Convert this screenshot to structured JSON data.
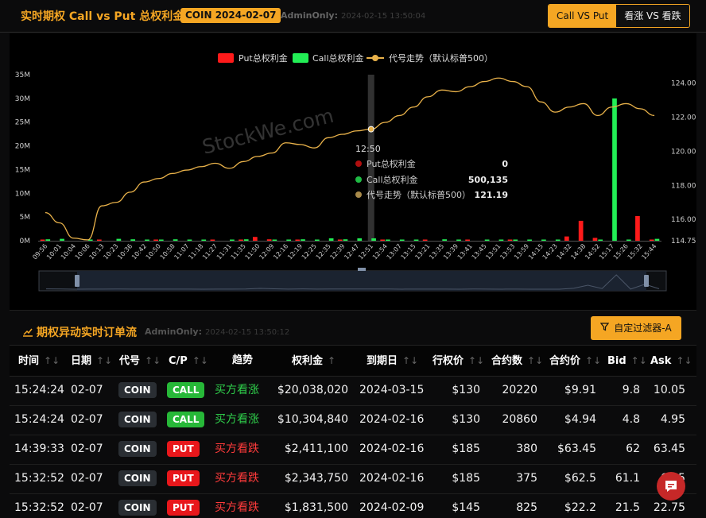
{
  "header": {
    "title": "实时期权 Call vs Put 总权利金",
    "badge": "COIN 2024-02-07",
    "admin_label": "AdminOnly:",
    "admin_timestamp": "2024-02-15 13:50:04",
    "tabs": [
      "Call VS Put",
      "看涨 VS 看跌"
    ]
  },
  "chart": {
    "legend": [
      "Put总权利金",
      "Call总权利金",
      "代号走势（默认标普500）"
    ],
    "watermark": "StockWe.com",
    "left_axis": [
      "35M",
      "30M",
      "25M",
      "20M",
      "15M",
      "10M",
      "5M",
      "0M"
    ],
    "right_axis": [
      "124.00",
      "122.00",
      "120.00",
      "118.00",
      "116.00",
      "114.75"
    ],
    "x_ticks": [
      "09:56",
      "10:01",
      "10:04",
      "10:06",
      "10:13",
      "10:23",
      "10:36",
      "10:42",
      "10:50",
      "10:58",
      "11:07",
      "11:18",
      "11:27",
      "11:31",
      "11:35",
      "11:50",
      "12:09",
      "12:16",
      "12:19",
      "12:25",
      "12:35",
      "12:39",
      "12:47",
      "12:51",
      "12:54",
      "13:07",
      "13:15",
      "13:21",
      "13:35",
      "13:39",
      "13:41",
      "13:45",
      "13:51",
      "13:53",
      "13:59",
      "14:15",
      "14:23",
      "14:32",
      "14:38",
      "14:52",
      "15:17",
      "15:26",
      "15:32",
      "15:44"
    ],
    "tooltip": {
      "time": "12:50",
      "rows": [
        {
          "label": "Put总权利金",
          "value": "0"
        },
        {
          "label": "Call总权利金",
          "value": "500,135"
        },
        {
          "label": "代号走势（默认标普500）",
          "value": "121.19"
        }
      ]
    },
    "colors": {
      "put": "#ff1a1a",
      "call": "#22ee55",
      "line": "#e9b24a",
      "accent": "#f5a623"
    }
  },
  "chart_data": {
    "type": "bar",
    "legend": [
      "Put总权利金",
      "Call总权利金",
      "代号走势（默认标普500）"
    ],
    "y_left_range": [
      0,
      35000000
    ],
    "y_right_range": [
      114.75,
      124.5
    ],
    "x": [
      "09:56",
      "10:01",
      "10:04",
      "10:06",
      "10:13",
      "10:23",
      "10:36",
      "10:42",
      "10:50",
      "10:58",
      "11:07",
      "11:18",
      "11:27",
      "11:31",
      "11:35",
      "11:50",
      "12:09",
      "12:16",
      "12:19",
      "12:25",
      "12:35",
      "12:39",
      "12:47",
      "12:51",
      "12:54",
      "13:07",
      "13:15",
      "13:21",
      "13:35",
      "13:39",
      "13:41",
      "13:45",
      "13:51",
      "13:53",
      "13:59",
      "14:15",
      "14:23",
      "14:32",
      "14:38",
      "14:52",
      "15:17",
      "15:26",
      "15:32",
      "15:44"
    ],
    "series": [
      {
        "name": "Put总权利金",
        "values": [
          0.2,
          0,
          0,
          0,
          0.1,
          0,
          0,
          0,
          0.1,
          0,
          0,
          0,
          0.1,
          0,
          0.1,
          0.8,
          0.3,
          0,
          0.2,
          0,
          0,
          0.1,
          0,
          0,
          0.1,
          0,
          0,
          0.1,
          0,
          0,
          0.2,
          0,
          0,
          0.1,
          0,
          0,
          0,
          0.9,
          4.2,
          0.6,
          0,
          0,
          5.2,
          0.2
        ]
      },
      {
        "name": "Call总权利金",
        "values": [
          0.3,
          0.4,
          0,
          0.2,
          0,
          0.4,
          0.3,
          0.2,
          0.1,
          0.3,
          0.2,
          0.1,
          0,
          0.2,
          0.3,
          0,
          0.2,
          0.2,
          0.3,
          0.2,
          0.5,
          0.3,
          0.5,
          0.5,
          0.2,
          0.1,
          0.2,
          0,
          0.3,
          0.1,
          0,
          0.2,
          0.1,
          0.1,
          0.1,
          0.1,
          0.1,
          0,
          0,
          0.1,
          30.0,
          0.2,
          0,
          0.4
        ]
      },
      {
        "name": "代号走势（默认标普500）",
        "values": [
          116.4,
          115.8,
          114.9,
          114.8,
          116.8,
          117.0,
          117.6,
          118.2,
          118.4,
          118.7,
          118.9,
          119.1,
          119.3,
          119.0,
          119.4,
          119.7,
          119.9,
          120.5,
          120.4,
          120.2,
          120.8,
          121.0,
          121.2,
          121.3,
          121.7,
          122.1,
          122.6,
          123.2,
          123.6,
          123.5,
          123.8,
          124.1,
          124.3,
          124.1,
          123.8,
          122.9,
          122.3,
          122.6,
          122.8,
          122.1,
          122.6,
          122.8,
          122.5,
          122.1
        ]
      }
    ]
  },
  "orders": {
    "title": "期权异动实时订单流",
    "admin_label": "AdminOnly:",
    "admin_timestamp": "2024-02-15 13:50:12",
    "filter_button": "自定过滤器-A",
    "columns": [
      "时间",
      "日期",
      "代号",
      "C/P",
      "趋势",
      "权利金",
      "到期日",
      "行权价",
      "合约数",
      "合约价",
      "Bid",
      "Ask"
    ],
    "rows": [
      {
        "time": "15:24:24",
        "date": "02-07",
        "code": "COIN",
        "cp": "CALL",
        "trend": "买方看涨",
        "premium": "$20,038,020",
        "expiry": "2024-03-15",
        "strike": "$130",
        "contracts": "20220",
        "price": "$9.91",
        "bid": "9.8",
        "ask": "10.05"
      },
      {
        "time": "15:24:24",
        "date": "02-07",
        "code": "COIN",
        "cp": "CALL",
        "trend": "买方看涨",
        "premium": "$10,304,840",
        "expiry": "2024-02-16",
        "strike": "$130",
        "contracts": "20860",
        "price": "$4.94",
        "bid": "4.8",
        "ask": "4.95"
      },
      {
        "time": "14:39:33",
        "date": "02-07",
        "code": "COIN",
        "cp": "PUT",
        "trend": "买方看跌",
        "premium": "$2,411,100",
        "expiry": "2024-02-16",
        "strike": "$185",
        "contracts": "380",
        "price": "$63.45",
        "bid": "62",
        "ask": "63.45"
      },
      {
        "time": "15:32:52",
        "date": "02-07",
        "code": "COIN",
        "cp": "PUT",
        "trend": "买方看跌",
        "premium": "$2,343,750",
        "expiry": "2024-02-16",
        "strike": "$185",
        "contracts": "375",
        "price": "$62.5",
        "bid": "61.1",
        "ask": "62.5"
      },
      {
        "time": "15:32:52",
        "date": "02-07",
        "code": "COIN",
        "cp": "PUT",
        "trend": "买方看跌",
        "premium": "$1,831,500",
        "expiry": "2024-02-09",
        "strike": "$145",
        "contracts": "825",
        "price": "$22.2",
        "bid": "21.5",
        "ask": "22.75"
      }
    ]
  }
}
